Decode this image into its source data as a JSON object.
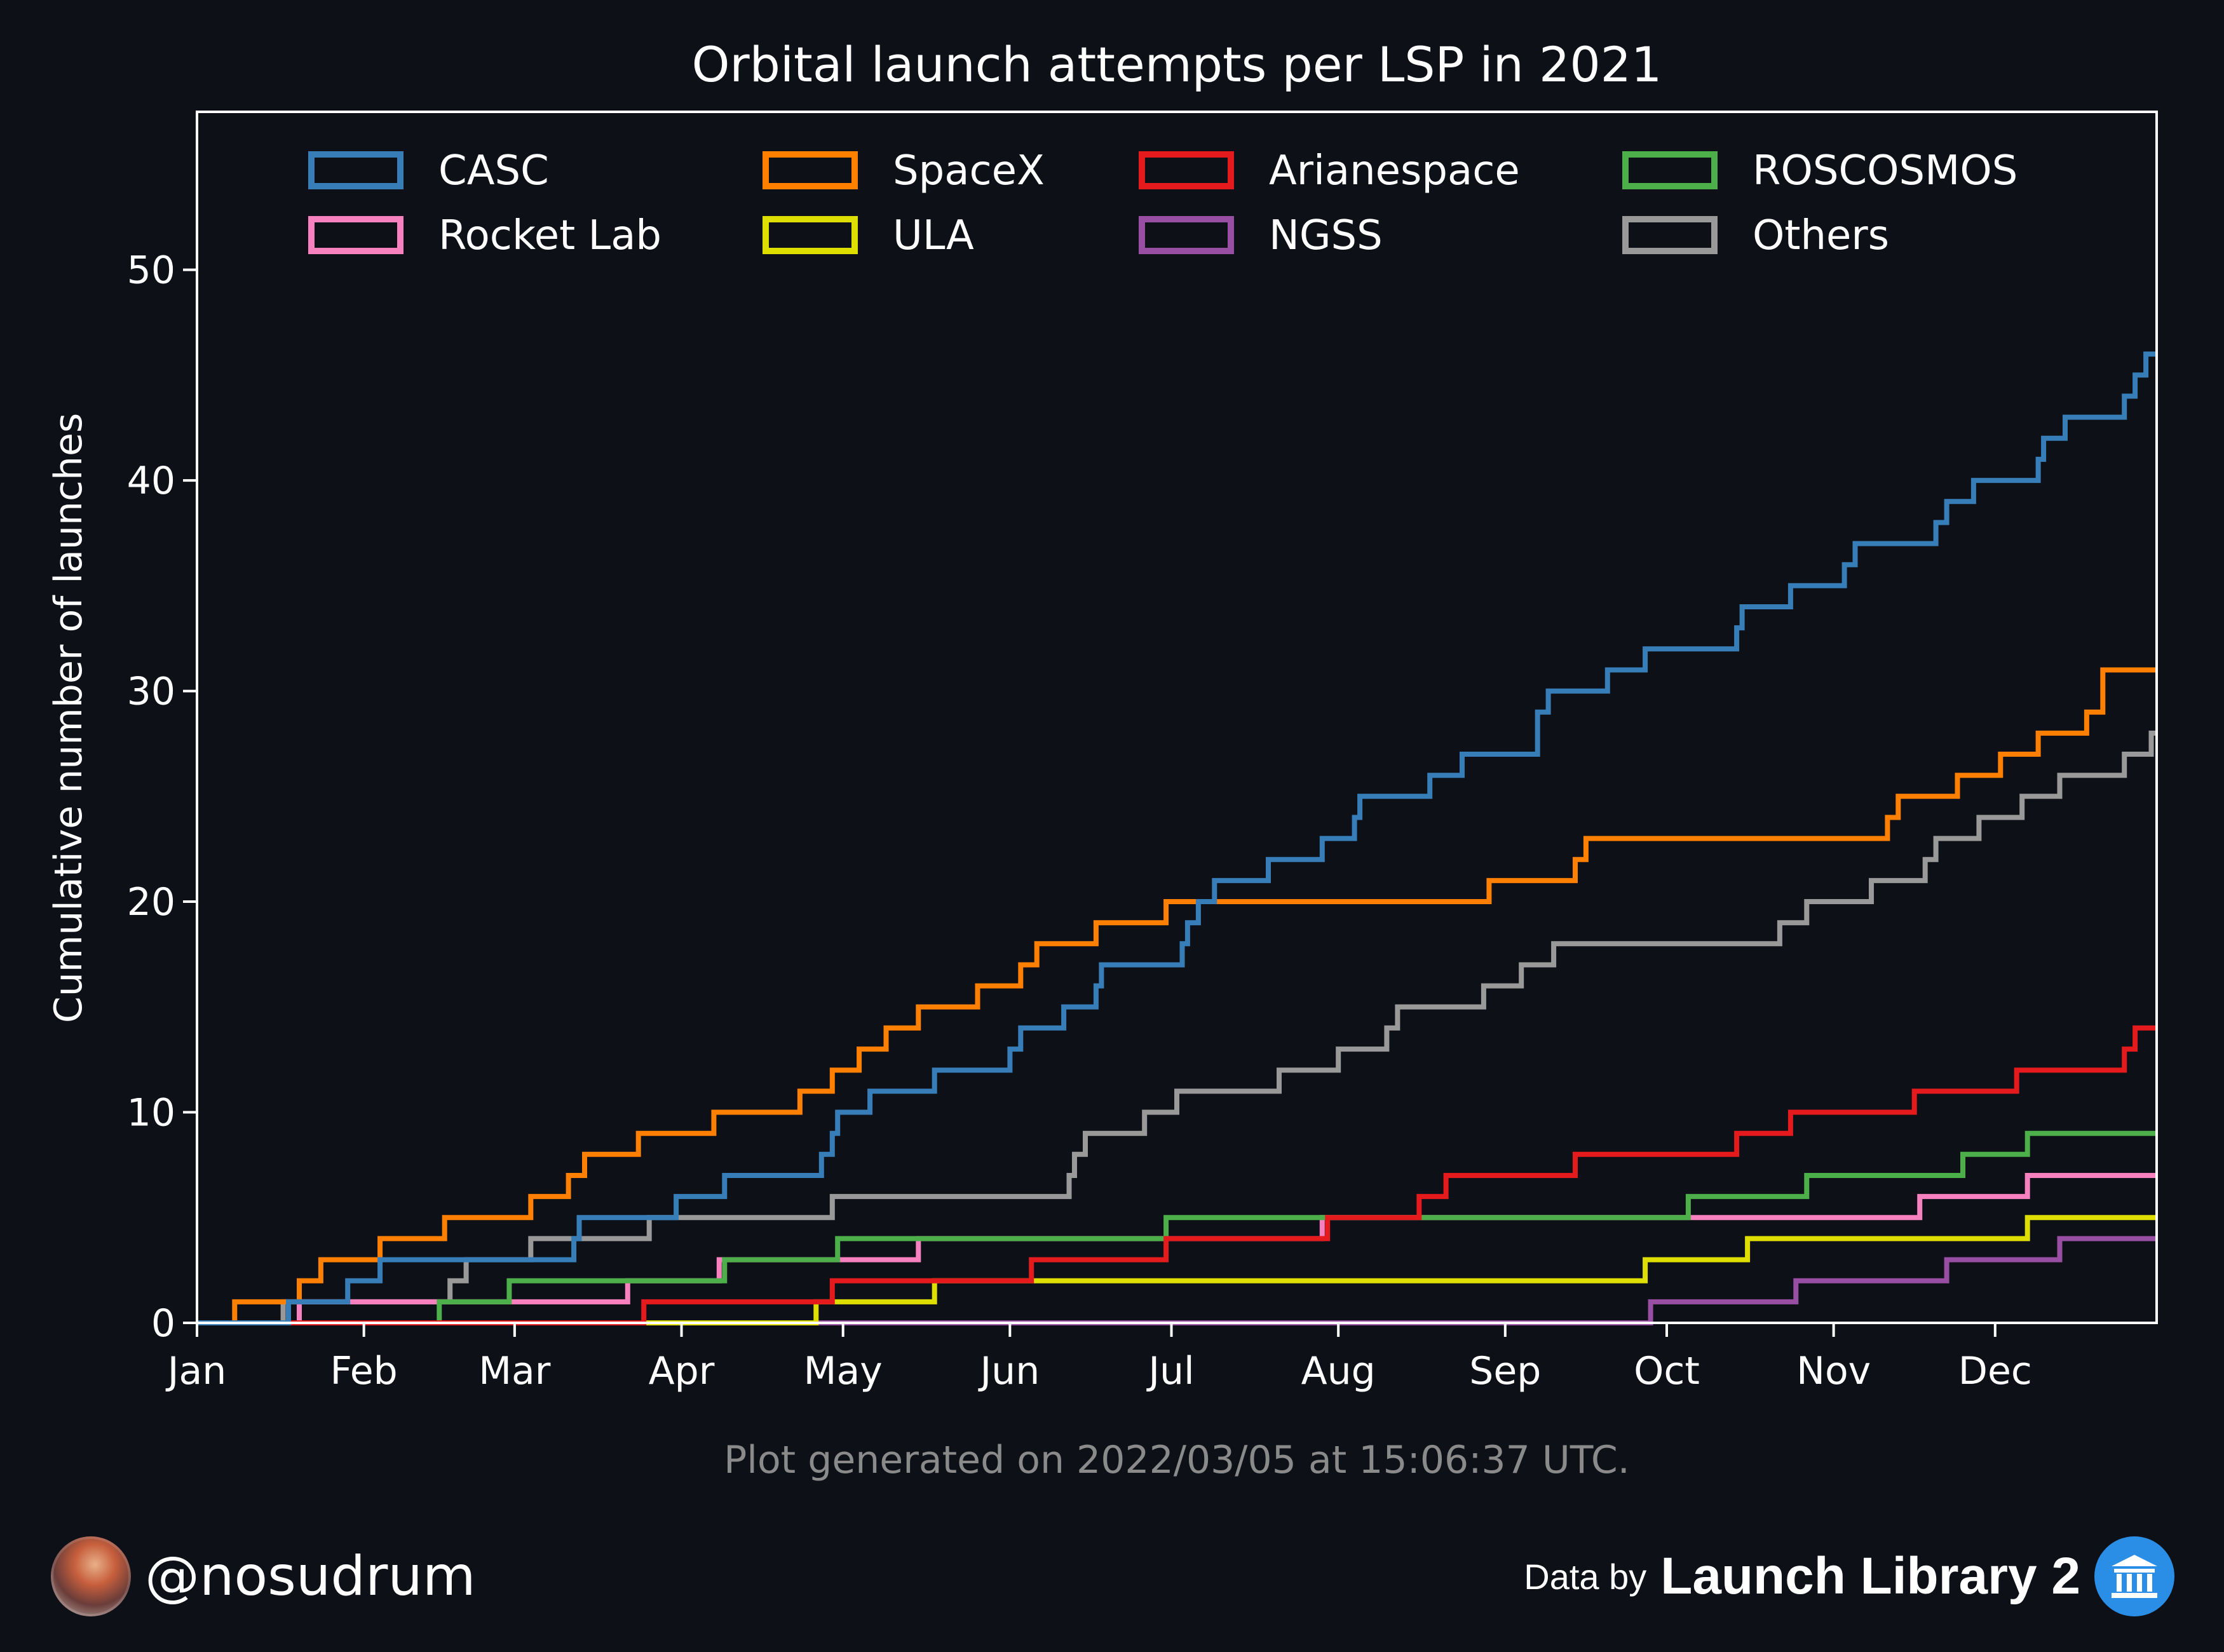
{
  "chart_data": {
    "type": "line",
    "title": "Orbital launch attempts per LSP in 2021",
    "xlabel": "",
    "ylabel": "Cumulative number of launches",
    "x_ticks": [
      "Jan",
      "Feb",
      "Mar",
      "Apr",
      "May",
      "Jun",
      "Jul",
      "Aug",
      "Sep",
      "Oct",
      "Nov",
      "Dec"
    ],
    "y_ticks": [
      "0",
      "10",
      "20",
      "30",
      "40",
      "50"
    ],
    "ylim": [
      0,
      57.5
    ],
    "xlim": [
      "2021-01-01",
      "2021-12-31"
    ],
    "grid": false,
    "legend_position": "top",
    "series": [
      {
        "name": "CASC",
        "color": "#377eb8",
        "dates": [
          "2021-01-01",
          "2021-01-18",
          "2021-01-20",
          "2021-01-29",
          "2021-02-04",
          "2021-02-24",
          "2021-03-12",
          "2021-03-13",
          "2021-03-31",
          "2021-04-09",
          "2021-04-27",
          "2021-04-29",
          "2021-04-30",
          "2021-05-06",
          "2021-05-18",
          "2021-06-01",
          "2021-06-03",
          "2021-06-11",
          "2021-06-17",
          "2021-06-18",
          "2021-07-03",
          "2021-07-04",
          "2021-07-06",
          "2021-07-09",
          "2021-07-19",
          "2021-07-29",
          "2021-08-04",
          "2021-08-05",
          "2021-08-18",
          "2021-08-24",
          "2021-09-07",
          "2021-09-09",
          "2021-09-20",
          "2021-09-27",
          "2021-10-14",
          "2021-10-15",
          "2021-10-24",
          "2021-11-03",
          "2021-11-05",
          "2021-11-20",
          "2021-11-22",
          "2021-11-27",
          "2021-12-09",
          "2021-12-10",
          "2021-12-14",
          "2021-12-25",
          "2021-12-27",
          "2021-12-29"
        ],
        "values": [
          0,
          1,
          1,
          2,
          3,
          3,
          4,
          5,
          6,
          7,
          8,
          9,
          10,
          11,
          12,
          13,
          14,
          15,
          16,
          17,
          18,
          19,
          20,
          21,
          22,
          23,
          24,
          25,
          26,
          27,
          29,
          30,
          31,
          32,
          33,
          34,
          35,
          36,
          37,
          38,
          39,
          40,
          41,
          42,
          43,
          44,
          45,
          46
        ]
      },
      {
        "name": "SpaceX",
        "color": "#ff7f00",
        "dates": [
          "2021-01-08",
          "2021-01-20",
          "2021-01-24",
          "2021-02-04",
          "2021-02-16",
          "2021-03-04",
          "2021-03-11",
          "2021-03-14",
          "2021-03-24",
          "2021-04-07",
          "2021-04-23",
          "2021-04-29",
          "2021-05-04",
          "2021-05-09",
          "2021-05-15",
          "2021-05-26",
          "2021-06-03",
          "2021-06-06",
          "2021-06-17",
          "2021-06-30",
          "2021-08-29",
          "2021-09-14",
          "2021-09-16",
          "2021-11-11",
          "2021-11-13",
          "2021-11-24",
          "2021-12-02",
          "2021-12-09",
          "2021-12-18",
          "2021-12-21"
        ],
        "values": [
          1,
          2,
          3,
          4,
          5,
          6,
          7,
          8,
          9,
          10,
          11,
          12,
          13,
          14,
          15,
          16,
          17,
          18,
          19,
          20,
          21,
          22,
          23,
          24,
          25,
          26,
          27,
          28,
          29,
          31
        ]
      },
      {
        "name": "Arianespace",
        "color": "#e41a1c",
        "dates": [
          "2021-03-25",
          "2021-04-29",
          "2021-06-05",
          "2021-06-30",
          "2021-07-30",
          "2021-08-16",
          "2021-08-21",
          "2021-09-14",
          "2021-10-14",
          "2021-10-24",
          "2021-11-16",
          "2021-12-05",
          "2021-12-25",
          "2021-12-27"
        ],
        "values": [
          1,
          2,
          3,
          4,
          5,
          6,
          7,
          8,
          9,
          10,
          11,
          12,
          13,
          14
        ]
      },
      {
        "name": "ROSCOSMOS",
        "color": "#4daf4a",
        "dates": [
          "2021-02-15",
          "2021-02-28",
          "2021-04-09",
          "2021-04-30",
          "2021-06-30",
          "2021-10-05",
          "2021-10-27",
          "2021-11-25",
          "2021-12-07"
        ],
        "values": [
          1,
          2,
          3,
          4,
          5,
          6,
          7,
          8,
          9
        ]
      },
      {
        "name": "Rocket Lab",
        "color": "#f781bf",
        "dates": [
          "2021-01-20",
          "2021-03-22",
          "2021-04-08",
          "2021-05-15",
          "2021-07-29",
          "2021-11-17",
          "2021-12-07"
        ],
        "values": [
          1,
          2,
          3,
          4,
          5,
          6,
          7
        ]
      },
      {
        "name": "ULA",
        "color": "#dede00",
        "dates": [
          "2021-04-26",
          "2021-05-18",
          "2021-09-27",
          "2021-10-16",
          "2021-12-07"
        ],
        "values": [
          1,
          2,
          3,
          4,
          5
        ]
      },
      {
        "name": "NGSS",
        "color": "#984ea3",
        "dates": [
          "2021-09-28",
          "2021-10-25",
          "2021-11-22",
          "2021-12-13"
        ],
        "values": [
          1,
          2,
          3,
          4
        ]
      },
      {
        "name": "Others",
        "color": "#999999",
        "dates": [
          "2021-01-17",
          "2021-02-17",
          "2021-02-20",
          "2021-03-04",
          "2021-03-26",
          "2021-04-29",
          "2021-06-12",
          "2021-06-13",
          "2021-06-15",
          "2021-06-26",
          "2021-07-02",
          "2021-07-21",
          "2021-08-01",
          "2021-08-10",
          "2021-08-12",
          "2021-08-28",
          "2021-09-04",
          "2021-09-10",
          "2021-10-22",
          "2021-10-27",
          "2021-11-08",
          "2021-11-18",
          "2021-11-20",
          "2021-11-28",
          "2021-12-06",
          "2021-12-13",
          "2021-12-25",
          "2021-12-30"
        ],
        "values": [
          1,
          2,
          3,
          4,
          5,
          6,
          7,
          8,
          9,
          10,
          11,
          12,
          13,
          14,
          15,
          16,
          17,
          18,
          19,
          20,
          21,
          22,
          23,
          24,
          25,
          26,
          27,
          28
        ]
      }
    ]
  },
  "footer": {
    "generated": "Plot generated on 2022/03/05 at 15:06:37 UTC.",
    "handle": "@nosudrum",
    "data_by": "Data by",
    "source": "Launch Library 2",
    "avatar_icon": "astronaut-avatar-icon",
    "source_icon": "library-building-icon"
  }
}
